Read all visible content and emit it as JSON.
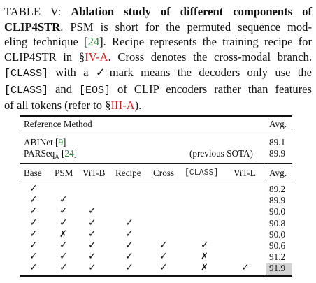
{
  "caption": {
    "label": "TABLE V:",
    "title_bold": "Ablation study of different components of CLIP4STR",
    "s1": ". PSM is short for the permuted sequence modeling technique [",
    "ref24": "24",
    "s2": "]. Recipe represents the training recipe for CLIP4STR in §",
    "ref_iva": "IV-A",
    "s3": ". Cross denotes the cross-modal branch.",
    "class_token": "[CLASS]",
    "s4": " with a ",
    "check_mark": "✓",
    "s5": "mark means the decoders only use the ",
    "and_text": " and ",
    "eos_token": "[EOS]",
    "s6": " of CLIP encoders rather than features of all tokens (refer to §",
    "ref_iiia": "III-A",
    "s7": ")."
  },
  "table": {
    "ref_header": "Reference Method",
    "avg_header": "Avg.",
    "references": [
      {
        "name": "ABINet [",
        "ref": "9",
        "close": "]",
        "note": "",
        "avg": "89.1"
      },
      {
        "name": "PARSeq",
        "sub": "A",
        "ref_open": " [",
        "ref": "24",
        "close": "]",
        "note": "(previous SOTA)",
        "avg": "89.9"
      }
    ],
    "columns": [
      "Base",
      "PSM",
      "ViT-B",
      "Recipe",
      "Cross",
      "[CLASS]",
      "ViT-L",
      "Avg."
    ],
    "rows": [
      {
        "marks": [
          "✓",
          "",
          "",
          "",
          "",
          "",
          ""
        ],
        "avg": "89.2"
      },
      {
        "marks": [
          "✓",
          "✓",
          "",
          "",
          "",
          "",
          ""
        ],
        "avg": "89.9"
      },
      {
        "marks": [
          "✓",
          "✓",
          "✓",
          "",
          "",
          "",
          ""
        ],
        "avg": "90.0"
      },
      {
        "marks": [
          "✓",
          "✓",
          "✓",
          "✓",
          "",
          "",
          ""
        ],
        "avg": "90.8"
      },
      {
        "marks": [
          "✓",
          "✗",
          "✓",
          "✓",
          "",
          "",
          ""
        ],
        "avg": "90.0"
      },
      {
        "marks": [
          "✓",
          "✓",
          "✓",
          "✓",
          "✓",
          "✓",
          ""
        ],
        "avg": "90.6"
      },
      {
        "marks": [
          "✓",
          "✓",
          "✓",
          "✓",
          "✓",
          "✗",
          ""
        ],
        "avg": "91.2"
      },
      {
        "marks": [
          "✓",
          "✓",
          "✓",
          "✓",
          "✓",
          "✗",
          "✓"
        ],
        "avg": "91.9"
      }
    ],
    "highlight_color": "#d3d3d3",
    "link_colors": {
      "ref": "#2e8b3a",
      "section": "#d42323"
    }
  }
}
